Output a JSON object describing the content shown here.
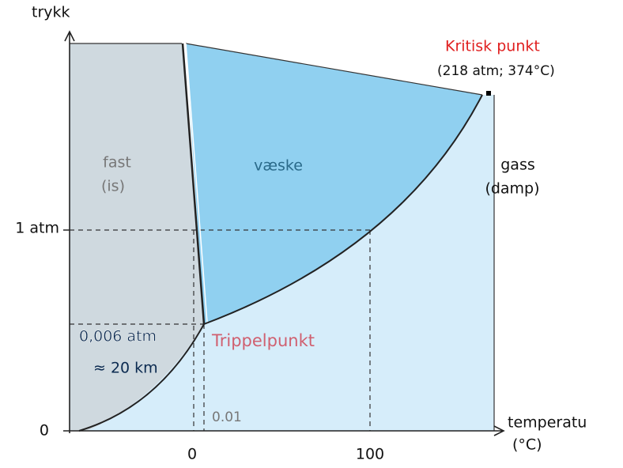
{
  "axes": {
    "y_label": "trykk",
    "x_label": "temperatu",
    "x_unit": "(°C)",
    "y_ticks": [
      "1 atm",
      "0"
    ],
    "x_ticks": [
      "0",
      "100"
    ]
  },
  "regions": [
    {
      "label": "fast",
      "sub": "(is)"
    },
    {
      "label": "væske"
    },
    {
      "label": "gass",
      "sub": "(damp)"
    }
  ],
  "critical_point": {
    "label": "Kritisk punkt",
    "detail": "(218 atm; 374°C)"
  },
  "triple_point": {
    "label": "Trippelpunkt",
    "pressure": "0,006 atm",
    "altitude": "≈ 20 km",
    "temperature": "0.01"
  }
}
